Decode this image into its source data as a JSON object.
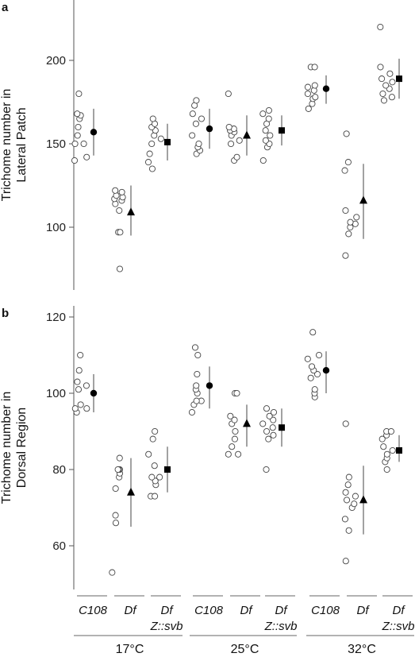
{
  "chart_data": [
    {
      "panel_label": "a",
      "type": "scatter",
      "ylabel": [
        "Trichome number in",
        "Lateral Patch"
      ],
      "ylim": [
        65,
        228
      ],
      "yticks": [
        100,
        150,
        200
      ],
      "series_markers": [
        "circle",
        "triangle",
        "square"
      ],
      "groups": [
        {
          "temp_index": 0,
          "series": 0,
          "points": [
            140,
            142,
            150,
            150,
            155,
            160,
            165,
            167,
            168,
            180
          ],
          "mean": 157,
          "bar": [
            143,
            171
          ]
        },
        {
          "temp_index": 0,
          "series": 1,
          "points": [
            75,
            97,
            97,
            110,
            114,
            116,
            117,
            118,
            119,
            121,
            122
          ],
          "mean": 109,
          "bar": [
            95,
            125
          ]
        },
        {
          "temp_index": 0,
          "series": 2,
          "points": [
            135,
            139,
            144,
            150,
            153,
            155,
            158,
            160,
            162,
            165
          ],
          "mean": 151,
          "bar": [
            140,
            162
          ]
        },
        {
          "temp_index": 1,
          "series": 0,
          "points": [
            144,
            146,
            148,
            150,
            155,
            162,
            165,
            168,
            173,
            176
          ],
          "mean": 159,
          "bar": [
            147,
            171
          ]
        },
        {
          "temp_index": 1,
          "series": 1,
          "points": [
            140,
            142,
            150,
            152,
            155,
            157,
            158,
            159,
            160,
            180
          ],
          "mean": 155,
          "bar": [
            143,
            167
          ]
        },
        {
          "temp_index": 1,
          "series": 2,
          "points": [
            140,
            148,
            150,
            152,
            155,
            158,
            162,
            165,
            168,
            170
          ],
          "mean": 158,
          "bar": [
            149,
            167
          ]
        },
        {
          "temp_index": 2,
          "series": 0,
          "points": [
            171,
            174,
            177,
            178,
            180,
            182,
            184,
            185,
            196,
            196
          ],
          "mean": 183,
          "bar": [
            174,
            191
          ]
        },
        {
          "temp_index": 2,
          "series": 1,
          "points": [
            83,
            96,
            100,
            102,
            103,
            106,
            110,
            134,
            139,
            156
          ],
          "mean": 116,
          "bar": [
            93,
            138
          ]
        },
        {
          "temp_index": 2,
          "series": 2,
          "points": [
            176,
            178,
            180,
            183,
            185,
            187,
            189,
            192,
            196,
            220
          ],
          "mean": 189,
          "bar": [
            177,
            201
          ]
        }
      ]
    },
    {
      "panel_label": "b",
      "type": "scatter",
      "ylabel": [
        "Trichome number in",
        "Dorsal Region"
      ],
      "ylim": [
        48,
        124
      ],
      "yticks": [
        60,
        80,
        100,
        120
      ],
      "series_markers": [
        "circle",
        "triangle",
        "square"
      ],
      "groups": [
        {
          "temp_index": 0,
          "series": 0,
          "points": [
            95,
            96,
            96,
            97,
            101,
            102,
            103,
            106,
            110
          ],
          "mean": 100,
          "bar": [
            95,
            105
          ]
        },
        {
          "temp_index": 0,
          "series": 1,
          "points": [
            53,
            66,
            68,
            75,
            78,
            79,
            80,
            80,
            80,
            83
          ],
          "mean": 74,
          "bar": [
            65,
            83
          ]
        },
        {
          "temp_index": 0,
          "series": 2,
          "points": [
            73,
            73,
            76,
            77,
            78,
            78,
            81,
            84,
            88,
            90
          ],
          "mean": 80,
          "bar": [
            74,
            86
          ]
        },
        {
          "temp_index": 1,
          "series": 0,
          "points": [
            95,
            97,
            98,
            98,
            100,
            101,
            102,
            105,
            110,
            112
          ],
          "mean": 102,
          "bar": [
            96,
            107
          ]
        },
        {
          "temp_index": 1,
          "series": 1,
          "points": [
            84,
            84,
            86,
            88,
            90,
            92,
            93,
            94,
            100,
            100
          ],
          "mean": 92,
          "bar": [
            86,
            97
          ]
        },
        {
          "temp_index": 1,
          "series": 2,
          "points": [
            80,
            88,
            89,
            90,
            91,
            92,
            93,
            94,
            95,
            96
          ],
          "mean": 91,
          "bar": [
            86,
            96
          ]
        },
        {
          "temp_index": 2,
          "series": 0,
          "points": [
            99,
            100,
            101,
            104,
            105,
            106,
            107,
            109,
            110,
            116
          ],
          "mean": 106,
          "bar": [
            100,
            111
          ]
        },
        {
          "temp_index": 2,
          "series": 1,
          "points": [
            56,
            64,
            67,
            70,
            71,
            72,
            73,
            74,
            76,
            78,
            92
          ],
          "mean": 72,
          "bar": [
            63,
            81
          ]
        },
        {
          "temp_index": 2,
          "series": 2,
          "points": [
            80,
            82,
            83,
            84,
            85,
            86,
            88,
            89,
            90,
            90
          ],
          "mean": 85,
          "bar": [
            82,
            89
          ]
        }
      ]
    }
  ],
  "categories": [
    {
      "line1": "C108",
      "line2": ""
    },
    {
      "line1": "Df",
      "line2": ""
    },
    {
      "line1": "Df",
      "line2": "Z::svb"
    }
  ],
  "temperatures": [
    "17°C",
    "25°C",
    "32°C"
  ]
}
